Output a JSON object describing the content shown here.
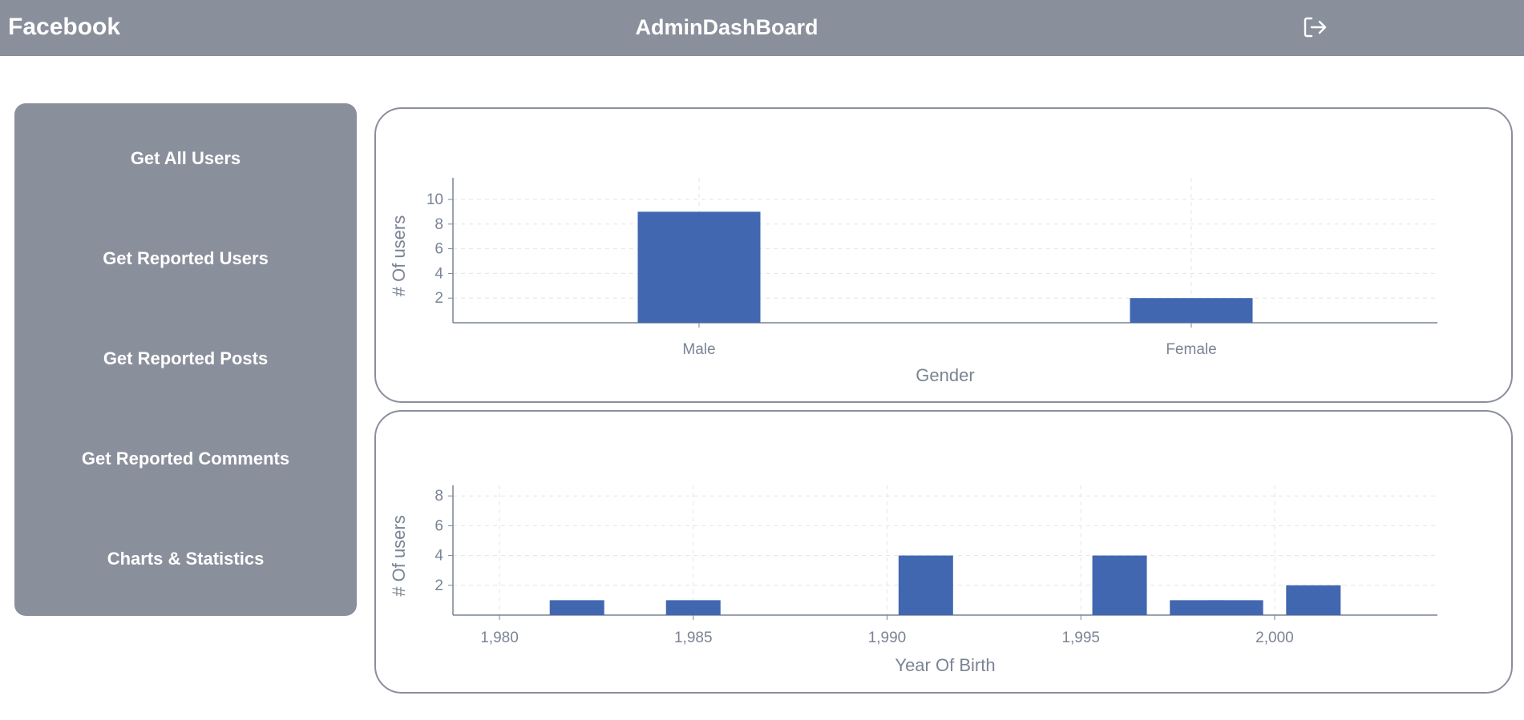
{
  "header": {
    "brand": "Facebook",
    "title": "AdminDashBoard",
    "logout_icon": "logout-icon"
  },
  "sidebar": {
    "items": [
      {
        "label": "Get All Users"
      },
      {
        "label": "Get Reported Users"
      },
      {
        "label": "Get Reported Posts"
      },
      {
        "label": "Get Reported Comments"
      },
      {
        "label": "Charts & Statistics"
      }
    ]
  },
  "colors": {
    "header_bg": "#8a8f9c",
    "bar": "#4167b1",
    "axis": "#7a8494"
  },
  "chart_data": [
    {
      "type": "bar",
      "categories": [
        "Male",
        "Female"
      ],
      "values": [
        9,
        2
      ],
      "xlabel": "Gender",
      "ylabel": "# Of users",
      "ylim": [
        0,
        11
      ],
      "yticks": [
        2,
        4,
        6,
        8,
        10
      ],
      "grid": true
    },
    {
      "type": "bar",
      "x": [
        1982,
        1985,
        1991,
        1996,
        1998,
        1999,
        2001
      ],
      "values": [
        1,
        1,
        4,
        4,
        1,
        1,
        2
      ],
      "xlabel": "Year Of Birth",
      "ylabel": "# Of users",
      "xlim": [
        1978.8,
        2004.2
      ],
      "ylim": [
        0,
        8.4
      ],
      "xticks": [
        "1,980",
        "1,985",
        "1,990",
        "1,995",
        "2,000"
      ],
      "yticks": [
        2,
        4,
        6,
        8
      ],
      "grid": true
    }
  ]
}
